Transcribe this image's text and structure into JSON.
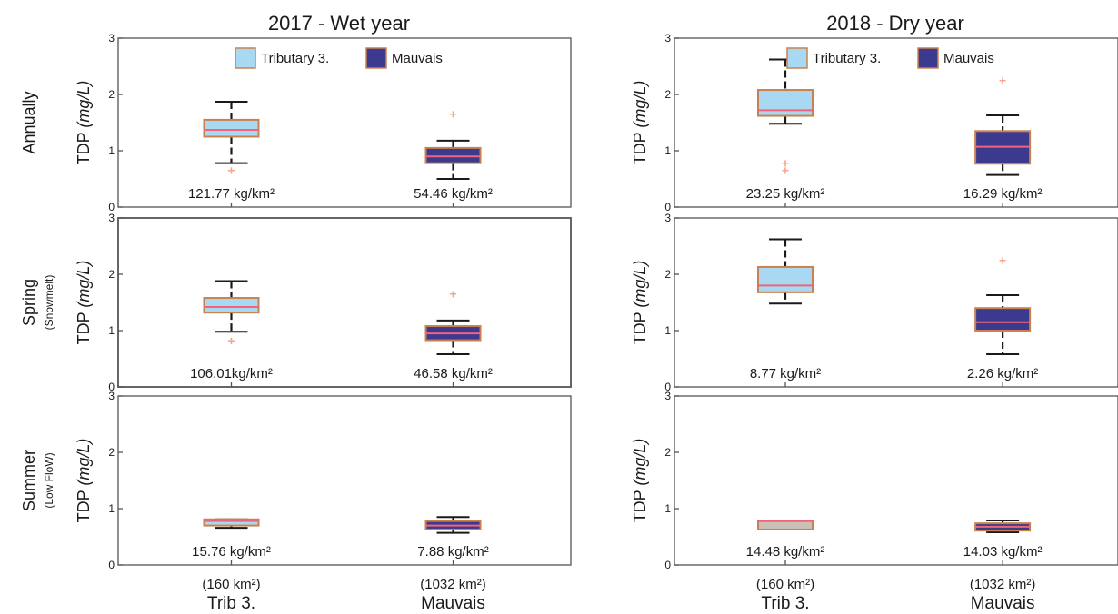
{
  "colors": {
    "trib": "#a9d8f2",
    "mauvais": "#3c3a8e",
    "median": "#f0647a",
    "outlier": "#f6a48a",
    "whisker": "#1a1a1a",
    "box_edge": "#c9824f",
    "summer_dry_trib": "#c9c0b6"
  },
  "columns": [
    {
      "title": "2017 - Wet year"
    },
    {
      "title": "2018 - Dry year"
    }
  ],
  "rows": [
    {
      "label": "Annually",
      "sublabel": ""
    },
    {
      "label": "Spring",
      "sublabel": "(Snowmelt)"
    },
    {
      "label": "Summer",
      "sublabel": "(Low FloW)"
    }
  ],
  "ylabel_main": "TDP ",
  "ylabel_unit": "(mg/L)",
  "legend": [
    {
      "name": "Tributary 3.",
      "swatch": "trib"
    },
    {
      "name": "Mauvais",
      "swatch": "mauvais"
    }
  ],
  "x_categories": [
    {
      "area": "(160 km²)",
      "name": "Trib 3."
    },
    {
      "area": "(1032 km²)",
      "name": "Mauvais"
    }
  ],
  "chart_data": {
    "type": "box",
    "ylim": [
      0,
      3
    ],
    "yticks": [
      "0",
      "1",
      "2",
      "3"
    ],
    "panels": [
      {
        "column": 0,
        "row": 0,
        "legend": true,
        "boxes": [
          {
            "category": "Trib 3.",
            "fill": "trib",
            "whisker_low": 0.78,
            "q1": 1.25,
            "median": 1.37,
            "q3": 1.55,
            "whisker_high": 1.87,
            "outliers": [
              0.65
            ],
            "annotation": "121.77 kg/km²"
          },
          {
            "category": "Mauvais",
            "fill": "mauvais",
            "whisker_low": 0.5,
            "q1": 0.78,
            "median": 0.9,
            "q3": 1.05,
            "whisker_high": 1.18,
            "outliers": [
              1.65
            ],
            "annotation": "54.46 kg/km²"
          }
        ]
      },
      {
        "column": 0,
        "row": 1,
        "legend": false,
        "boxes": [
          {
            "category": "Trib 3.",
            "fill": "trib",
            "whisker_low": 0.98,
            "q1": 1.32,
            "median": 1.42,
            "q3": 1.58,
            "whisker_high": 1.88,
            "outliers": [
              0.82
            ],
            "annotation": "106.01kg/km²"
          },
          {
            "category": "Mauvais",
            "fill": "mauvais",
            "whisker_low": 0.58,
            "q1": 0.83,
            "median": 0.95,
            "q3": 1.08,
            "whisker_high": 1.18,
            "outliers": [
              1.65
            ],
            "annotation": "46.58 kg/km²"
          }
        ]
      },
      {
        "column": 0,
        "row": 2,
        "legend": false,
        "boxes": [
          {
            "category": "Trib 3.",
            "fill": "trib",
            "whisker_low": 0.66,
            "q1": 0.7,
            "median": 0.78,
            "q3": 0.81,
            "whisker_high": 0.81,
            "outliers": [],
            "annotation": "15.76 kg/km²"
          },
          {
            "category": "Mauvais",
            "fill": "mauvais",
            "whisker_low": 0.57,
            "q1": 0.63,
            "median": 0.7,
            "q3": 0.78,
            "whisker_high": 0.85,
            "outliers": [],
            "annotation": "7.88 kg/km²"
          }
        ]
      },
      {
        "column": 1,
        "row": 0,
        "legend": true,
        "boxes": [
          {
            "category": "Trib 3.",
            "fill": "trib",
            "whisker_low": 1.48,
            "q1": 1.62,
            "median": 1.72,
            "q3": 2.08,
            "whisker_high": 2.62,
            "outliers": [
              0.65,
              0.78
            ],
            "annotation": "23.25 kg/km²"
          },
          {
            "category": "Mauvais",
            "fill": "mauvais",
            "whisker_low": 0.57,
            "q1": 0.77,
            "median": 1.07,
            "q3": 1.35,
            "whisker_high": 1.63,
            "outliers": [
              2.25
            ],
            "annotation": "16.29 kg/km²"
          }
        ]
      },
      {
        "column": 1,
        "row": 1,
        "legend": false,
        "boxes": [
          {
            "category": "Trib 3.",
            "fill": "trib",
            "whisker_low": 1.48,
            "q1": 1.68,
            "median": 1.8,
            "q3": 2.13,
            "whisker_high": 2.62,
            "outliers": [],
            "annotation": "8.77 kg/km²"
          },
          {
            "category": "Mauvais",
            "fill": "mauvais",
            "whisker_low": 0.58,
            "q1": 1.0,
            "median": 1.15,
            "q3": 1.4,
            "whisker_high": 1.63,
            "outliers": [
              2.25
            ],
            "annotation": "2.26 kg/km²"
          }
        ]
      },
      {
        "column": 1,
        "row": 2,
        "legend": false,
        "boxes": [
          {
            "category": "Trib 3.",
            "fill": "summer_dry_trib",
            "whisker_low": 0.63,
            "q1": 0.63,
            "median": 0.78,
            "q3": 0.78,
            "whisker_high": 0.78,
            "outliers": [],
            "annotation": "14.48 kg/km²"
          },
          {
            "category": "Mauvais",
            "fill": "mauvais",
            "whisker_low": 0.58,
            "q1": 0.61,
            "median": 0.68,
            "q3": 0.74,
            "whisker_high": 0.79,
            "outliers": [],
            "annotation": "14.03 kg/km²"
          }
        ]
      }
    ]
  }
}
